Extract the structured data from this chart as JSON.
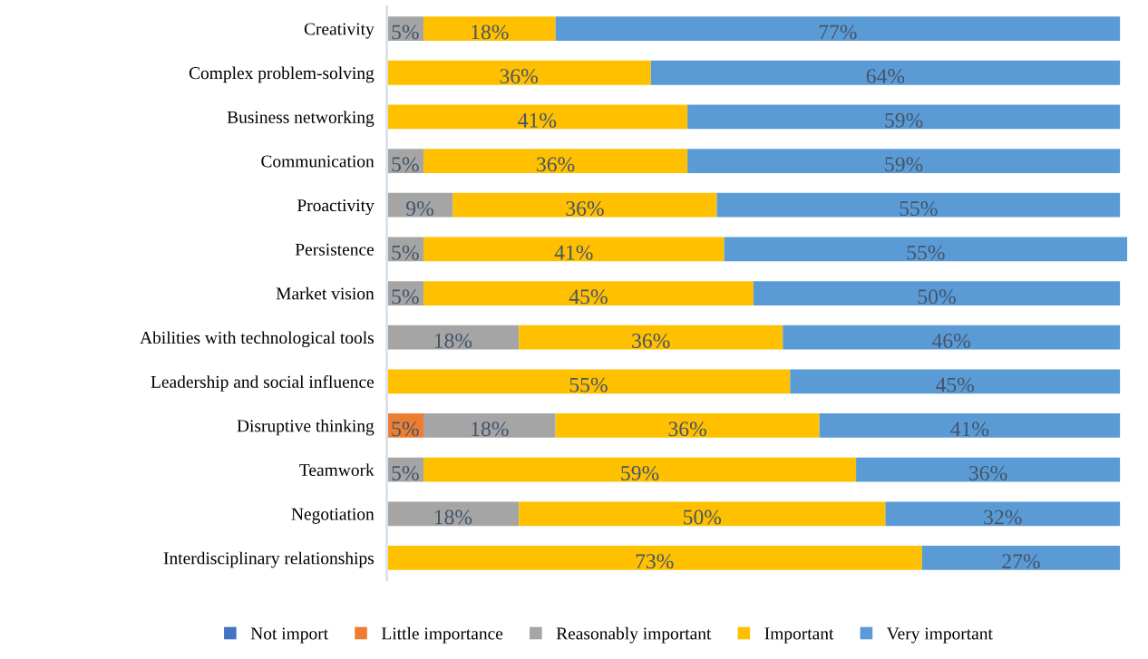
{
  "chart_data": {
    "type": "bar",
    "orientation": "horizontal",
    "stacked": true,
    "legend": "bottom",
    "tick_labels": "y",
    "grid": false,
    "categories": [
      "Creativity",
      "Complex problem-solving",
      "Business networking",
      "Communication",
      "Proactivity",
      "Persistence",
      "Market vision",
      "Abilities with technological tools",
      "Leadership and social influence",
      "Disruptive thinking",
      "Teamwork",
      "Negotiation",
      "Interdisciplinary relationships"
    ],
    "series": [
      {
        "name": "Not import",
        "color": "#4472c4",
        "values": [
          null,
          null,
          null,
          null,
          null,
          null,
          null,
          null,
          null,
          null,
          null,
          null,
          null
        ]
      },
      {
        "name": "Little importance",
        "color": "#ed7d31",
        "values": [
          null,
          null,
          null,
          null,
          null,
          null,
          null,
          null,
          null,
          5,
          null,
          null,
          null
        ],
        "value_labels": [
          null,
          null,
          null,
          null,
          null,
          null,
          null,
          null,
          null,
          "5%",
          null,
          null,
          null
        ]
      },
      {
        "name": "Reasonably important",
        "color": "#a5a5a5",
        "values": [
          5,
          null,
          null,
          5,
          9,
          5,
          5,
          18,
          null,
          18,
          5,
          18,
          null
        ],
        "value_labels": [
          "5%",
          null,
          null,
          "5%",
          "9%",
          "5%",
          "5%",
          "18%",
          null,
          "18%",
          "5%",
          "18%",
          null
        ]
      },
      {
        "name": "Important",
        "color": "#ffc000",
        "values": [
          18,
          36,
          41,
          36,
          36,
          41,
          45,
          36,
          55,
          36,
          59,
          50,
          73
        ],
        "value_labels": [
          "18%",
          "36%",
          "41%",
          "36%",
          "36%",
          "41%",
          "45%",
          "36%",
          "55%",
          "36%",
          "59%",
          "50%",
          "73%"
        ]
      },
      {
        "name": "Very important",
        "color": "#5b9bd5",
        "values": [
          77,
          64,
          59,
          59,
          55,
          55,
          50,
          46,
          45,
          41,
          36,
          32,
          27
        ],
        "value_labels": [
          "77%",
          "64%",
          "59%",
          "59%",
          "55%",
          "55%",
          "50%",
          "46%",
          "45%",
          "41%",
          "36%",
          "32%",
          "27%"
        ]
      }
    ]
  }
}
